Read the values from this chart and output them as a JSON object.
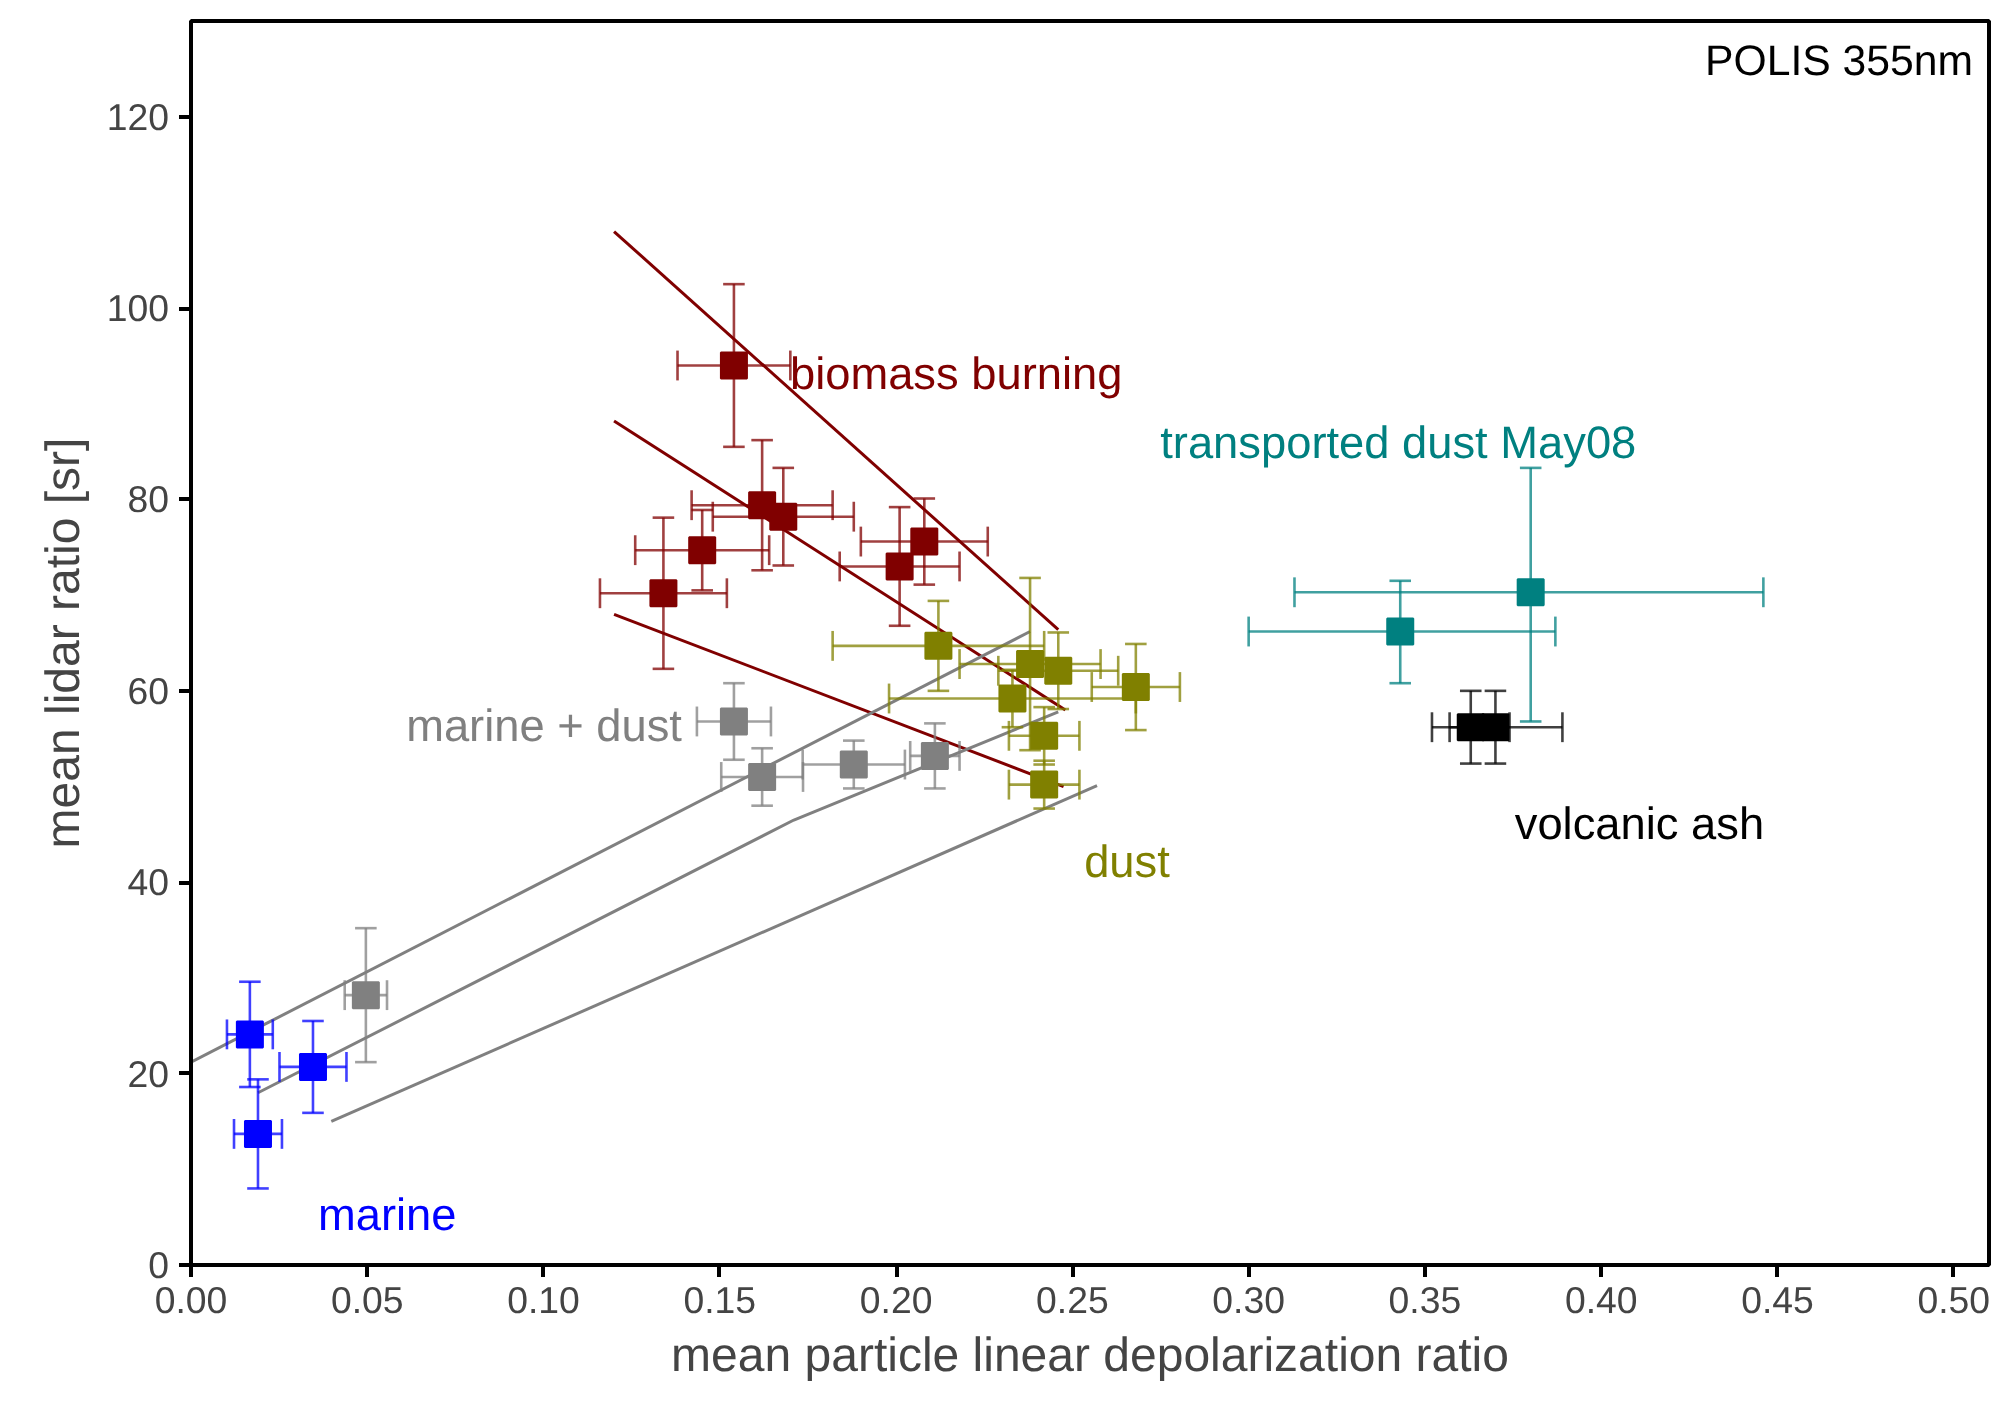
{
  "chart_data": {
    "type": "scatter",
    "xlabel": "mean particle linear depolarization ratio",
    "ylabel": "mean lidar ratio [sr]",
    "xlim": [
      0,
      0.51
    ],
    "ylim": [
      0,
      130
    ],
    "xticks": [
      {
        "value": 0,
        "label": "0.00"
      },
      0.05,
      {
        "value": 0.1,
        "label": "0.10"
      },
      0.15,
      {
        "value": 0.2,
        "label": "0.20"
      },
      0.25,
      {
        "value": 0.3,
        "label": "0.30"
      },
      0.35,
      {
        "value": 0.4,
        "label": "0.40"
      },
      0.45,
      {
        "value": 0.5,
        "label": "0.50"
      }
    ],
    "yticks": [
      0,
      20,
      40,
      60,
      80,
      100,
      120
    ],
    "grid": false,
    "marker": "square",
    "series": [
      {
        "name": "biomass burning",
        "color": "#800000",
        "x": [
          0.154,
          0.162,
          0.168,
          0.145,
          0.134,
          0.208,
          0.201
        ],
        "values": [
          94.0,
          79.4,
          78.2,
          74.7,
          70.2,
          75.6,
          73.0
        ],
        "xerrors": [
          0.016,
          0.02,
          0.02,
          0.019,
          0.018,
          0.018,
          0.017
        ],
        "errors": [
          8.5,
          6.8,
          5.1,
          4.2,
          7.9,
          4.5,
          6.2
        ]
      },
      {
        "name": "dust",
        "color": "#808000",
        "x": [
          0.212,
          0.238,
          0.246,
          0.233,
          0.268,
          0.242,
          0.242
        ],
        "values": [
          64.7,
          62.8,
          62.1,
          59.2,
          60.4,
          55.3,
          50.2
        ],
        "xerrors": [
          0.03,
          0.02,
          0.017,
          0.035,
          0.0125,
          0.01,
          0.01
        ],
        "errors": [
          4.7,
          9,
          4,
          3,
          4.5,
          3,
          2.5
        ]
      },
      {
        "name": "marine + dust",
        "color": "#808080",
        "x": [
          0.154,
          0.162,
          0.188,
          0.211,
          0.0496
        ],
        "values": [
          56.8,
          51.0,
          52.3,
          53.2,
          28.2
        ],
        "xerrors": [
          0.0105,
          0.0116,
          0.0145,
          0.007,
          0.006
        ],
        "errors": [
          4,
          3,
          2.5,
          3.4,
          7
        ]
      },
      {
        "name": "marine",
        "color": "#0000ff",
        "x": [
          0.0167,
          0.0346,
          0.019
        ],
        "values": [
          24.1,
          20.7,
          13.7
        ],
        "xerrors": [
          0.0065,
          0.0095,
          0.0068
        ],
        "errors": [
          5.5,
          4.8,
          5.7
        ]
      },
      {
        "name": "transported dust May08",
        "color": "#008080",
        "x": [
          0.38,
          0.343
        ],
        "values": [
          70.3,
          66.2
        ],
        "xerrors": [
          [
            0.313,
            0.446
          ],
          [
            0.3,
            0.387
          ]
        ],
        "errors": [
          [
            56.8,
            83.3
          ],
          [
            60.8,
            71.5
          ]
        ]
      },
      {
        "name": "volcanic ash",
        "color": "#000000",
        "x": [
          0.363,
          0.37
        ],
        "values": [
          56.2,
          56.2
        ],
        "xerrors": [
          [
            0.352,
            0.374
          ],
          [
            0.357,
            0.389
          ]
        ],
        "errors": [
          3.8,
          3.8
        ]
      },
      {
        "type": "line",
        "marker": "none",
        "color": "#800000",
        "x": [
          0.12,
          0.248
        ],
        "values": [
          88.2,
          58
        ]
      },
      {
        "type": "line",
        "marker": "none",
        "color": "#800000",
        "x": [
          0.12,
          0.246
        ],
        "values": [
          108,
          66.4
        ]
      },
      {
        "type": "line",
        "marker": "none",
        "color": "#800000",
        "x": [
          0.12,
          0.2475
        ],
        "values": [
          68,
          50
        ]
      },
      {
        "type": "line",
        "marker": "none",
        "color": "#808080",
        "x": [
          0.019,
          0.171,
          0.246
        ],
        "values": [
          18,
          46.5,
          57.8
        ]
      },
      {
        "type": "line",
        "marker": "none",
        "color": "#808080",
        "x": [
          0,
          0.238
        ],
        "values": [
          21.2,
          66.2
        ]
      },
      {
        "type": "line",
        "marker": "none",
        "color": "#808080",
        "x": [
          0.0398,
          0.257
        ],
        "values": [
          15,
          50.1
        ]
      }
    ],
    "annotations": [
      "POLIS 355nm"
    ]
  }
}
